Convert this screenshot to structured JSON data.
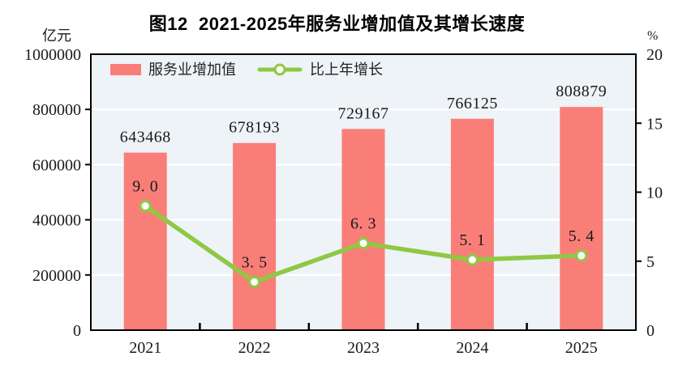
{
  "header": {
    "title": "图12  2021-2025年服务业增加值及其增长速度",
    "left_axis_unit": "亿元",
    "right_axis_unit": "%"
  },
  "legend": {
    "items": [
      {
        "label": "服务业增加值",
        "swatch": "bar",
        "color": "#fa7e78"
      },
      {
        "label": "比上年增长",
        "swatch": "line",
        "color": "#8fc843"
      }
    ]
  },
  "chart_data": {
    "type": "bar",
    "subtype": "combo-bar-line",
    "title": "图12  2021-2025年服务业增加值及其增长速度",
    "categories": [
      "2021",
      "2022",
      "2023",
      "2024",
      "2025"
    ],
    "series": [
      {
        "name": "服务业增加值",
        "type": "bar",
        "axis": "left",
        "unit": "亿元",
        "color": "#fa7e78",
        "values": [
          643468,
          678193,
          729167,
          766125,
          808879
        ],
        "labels": [
          "643468",
          "678193",
          "729167",
          "766125",
          "808879"
        ]
      },
      {
        "name": "比上年增长",
        "type": "line",
        "axis": "right",
        "unit": "%",
        "color": "#8fc843",
        "marker": "white-circle-green-ring",
        "values": [
          9.0,
          3.5,
          6.3,
          5.1,
          5.4
        ],
        "labels": [
          "9. 0",
          "3. 5",
          "6. 3",
          "5. 1",
          "5. 4"
        ]
      }
    ],
    "left_axis": {
      "unit": "亿元",
      "min": 0,
      "max": 1000000,
      "tick_interval": 200000,
      "ticks": [
        0,
        200000,
        400000,
        600000,
        800000,
        1000000
      ]
    },
    "right_axis": {
      "unit": "%",
      "min": 0,
      "max": 20,
      "tick_interval": 5,
      "ticks": [
        0,
        5,
        10,
        15,
        20
      ]
    },
    "grid": true,
    "gridline_color": "#ffffff",
    "plot_background": "#eef3f8",
    "frame_color": "#000000",
    "legend_position": "top-left-inside"
  }
}
